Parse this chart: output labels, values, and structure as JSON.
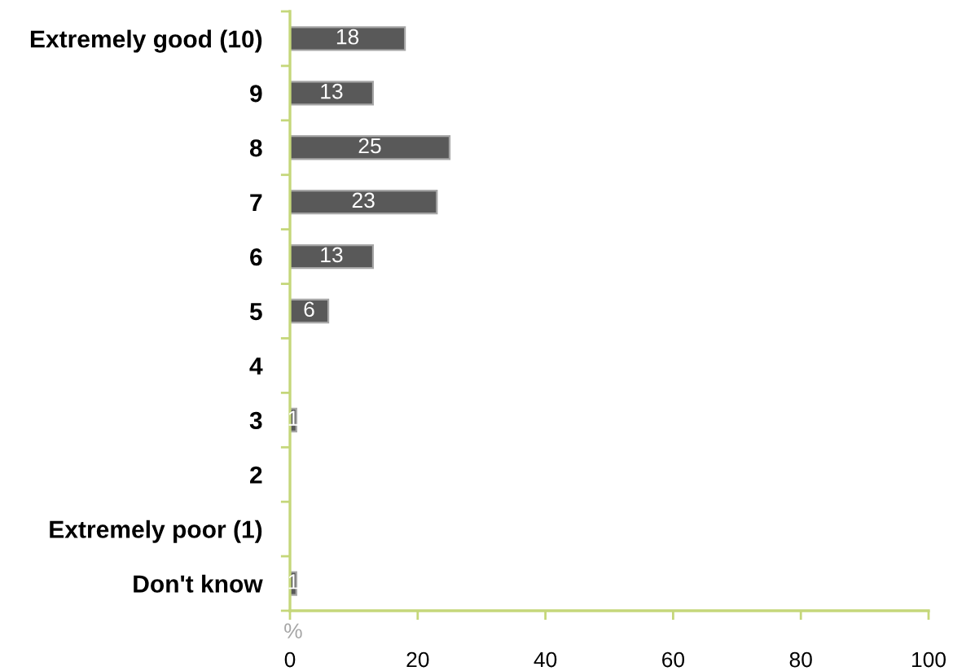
{
  "chart_data": {
    "type": "bar",
    "orientation": "horizontal",
    "categories": [
      "Extremely good (10)",
      "9",
      "8",
      "7",
      "6",
      "5",
      "4",
      "3",
      "2",
      "Extremely poor (1)",
      "Don't know"
    ],
    "values": [
      18,
      13,
      25,
      23,
      13,
      6,
      0,
      1,
      0,
      0,
      1
    ],
    "value_labels": [
      "18",
      "13",
      "25",
      "23",
      "13",
      "6",
      null,
      "1",
      null,
      null,
      "1"
    ],
    "color": "#595959",
    "xlabel": "%",
    "xlim": [
      0,
      100
    ],
    "xticks": [
      0,
      20,
      40,
      60,
      80,
      100
    ]
  }
}
